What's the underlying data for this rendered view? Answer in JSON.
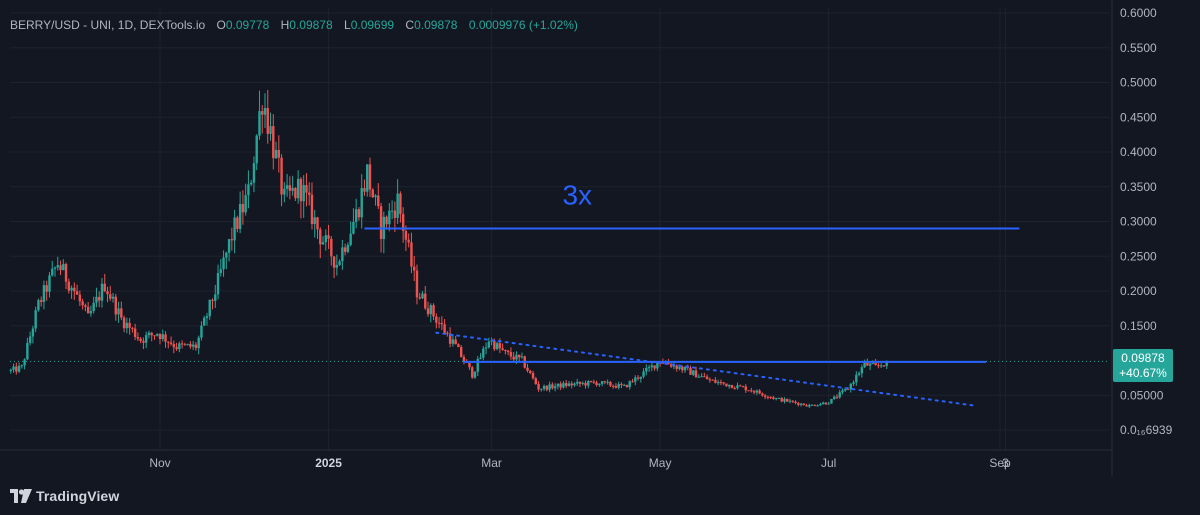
{
  "legend": {
    "symbol": "BERRY/USD - UNI, 1D, DEXTools.io",
    "open_label": "O",
    "open": "0.09778",
    "high_label": "H",
    "high": "0.09878",
    "low_label": "L",
    "low": "0.09699",
    "close_label": "C",
    "close": "0.09878",
    "change": "0.0009976 (+1.02%)"
  },
  "price_tag": {
    "price": "0.09878",
    "change_pct": "+40.67%"
  },
  "annotation": {
    "text": "3x"
  },
  "footer": {
    "brand": "TradingView"
  },
  "colors": {
    "background": "#131722",
    "up": "#26a69a",
    "down": "#ef5350",
    "line": "#2962ff",
    "grid": "#1e222d",
    "axis_text": "#b2b5be"
  },
  "chart_data": {
    "type": "candlestick",
    "title": "BERRY/USD - UNI, 1D, DEXTools.io",
    "ylim": [
      0.0,
      0.6
    ],
    "y_ticks": [
      {
        "label": "0.6000",
        "value": 0.6
      },
      {
        "label": "0.5500",
        "value": 0.55
      },
      {
        "label": "0.5000",
        "value": 0.5
      },
      {
        "label": "0.4500",
        "value": 0.45
      },
      {
        "label": "0.4000",
        "value": 0.4
      },
      {
        "label": "0.3500",
        "value": 0.35
      },
      {
        "label": "0.3000",
        "value": 0.3
      },
      {
        "label": "0.2500",
        "value": 0.25
      },
      {
        "label": "0.2000",
        "value": 0.2
      },
      {
        "label": "0.1500",
        "value": 0.15
      },
      {
        "label": "0.05000",
        "value": 0.05
      },
      {
        "label": "0.0₁₆6939",
        "value": 0.0
      }
    ],
    "x_ticks": [
      {
        "label": "Nov",
        "date": "2024-11-01",
        "bold": false
      },
      {
        "label": "2025",
        "date": "2025-01-01",
        "bold": true
      },
      {
        "label": "Mar",
        "date": "2025-03-01",
        "bold": false
      },
      {
        "label": "May",
        "date": "2025-05-01",
        "bold": false
      },
      {
        "label": "Jul",
        "date": "2025-07-01",
        "bold": false
      },
      {
        "label": "Sep",
        "date": "2025-09-01",
        "bold": false
      },
      {
        "label": "3",
        "date": "2025-09-03",
        "bold": false
      }
    ],
    "candles_start": "2024-09-08",
    "candles_end": "2025-07-22",
    "close_path": [
      [
        "2024-09-08",
        0.085
      ],
      [
        "2024-09-12",
        0.09
      ],
      [
        "2024-09-18",
        0.18
      ],
      [
        "2024-09-25",
        0.24
      ],
      [
        "2024-10-01",
        0.2
      ],
      [
        "2024-10-06",
        0.16
      ],
      [
        "2024-10-12",
        0.21
      ],
      [
        "2024-10-18",
        0.16
      ],
      [
        "2024-10-25",
        0.13
      ],
      [
        "2024-10-31",
        0.14
      ],
      [
        "2024-11-07",
        0.12
      ],
      [
        "2024-11-14",
        0.12
      ],
      [
        "2024-11-21",
        0.2
      ],
      [
        "2024-11-27",
        0.28
      ],
      [
        "2024-12-03",
        0.34
      ],
      [
        "2024-12-08",
        0.48
      ],
      [
        "2024-12-11",
        0.43
      ],
      [
        "2024-12-16",
        0.33
      ],
      [
        "2024-12-22",
        0.35
      ],
      [
        "2024-12-29",
        0.28
      ],
      [
        "2025-01-04",
        0.24
      ],
      [
        "2025-01-11",
        0.31
      ],
      [
        "2025-01-15",
        0.37
      ],
      [
        "2025-01-20",
        0.29
      ],
      [
        "2025-01-26",
        0.33
      ],
      [
        "2025-02-02",
        0.2
      ],
      [
        "2025-02-09",
        0.16
      ],
      [
        "2025-02-16",
        0.12
      ],
      [
        "2025-02-22",
        0.08
      ],
      [
        "2025-02-28",
        0.13
      ],
      [
        "2025-03-06",
        0.11
      ],
      [
        "2025-03-12",
        0.1
      ],
      [
        "2025-03-18",
        0.06
      ],
      [
        "2025-03-28",
        0.065
      ],
      [
        "2025-04-08",
        0.068
      ],
      [
        "2025-04-18",
        0.062
      ],
      [
        "2025-04-26",
        0.085
      ],
      [
        "2025-05-01",
        0.1
      ],
      [
        "2025-05-08",
        0.09
      ],
      [
        "2025-05-20",
        0.07
      ],
      [
        "2025-06-01",
        0.06
      ],
      [
        "2025-06-12",
        0.045
      ],
      [
        "2025-06-24",
        0.035
      ],
      [
        "2025-07-01",
        0.04
      ],
      [
        "2025-07-08",
        0.06
      ],
      [
        "2025-07-14",
        0.095
      ],
      [
        "2025-07-18",
        0.09
      ],
      [
        "2025-07-22",
        0.0988
      ]
    ],
    "last_price": 0.09878,
    "last_change_pct": "+40.67%",
    "annotations": {
      "horizontal_lines": [
        {
          "name": "target-line",
          "y": 0.29,
          "from": "2025-01-14",
          "to": "2025-09-08"
        },
        {
          "name": "resistance-line",
          "y": 0.098,
          "from": "2025-02-19",
          "to": "2025-08-27"
        }
      ],
      "trend_lines": [
        {
          "name": "descending-trendline",
          "style": "dotted",
          "from": [
            "2025-02-09",
            0.14
          ],
          "to": [
            "2025-08-23",
            0.035
          ]
        }
      ],
      "text_labels": [
        {
          "text": "3x",
          "date": "2025-04-01",
          "y": 0.33
        }
      ]
    },
    "current_price_line": {
      "y": 0.09878,
      "style": "dotted"
    },
    "grid": true
  }
}
